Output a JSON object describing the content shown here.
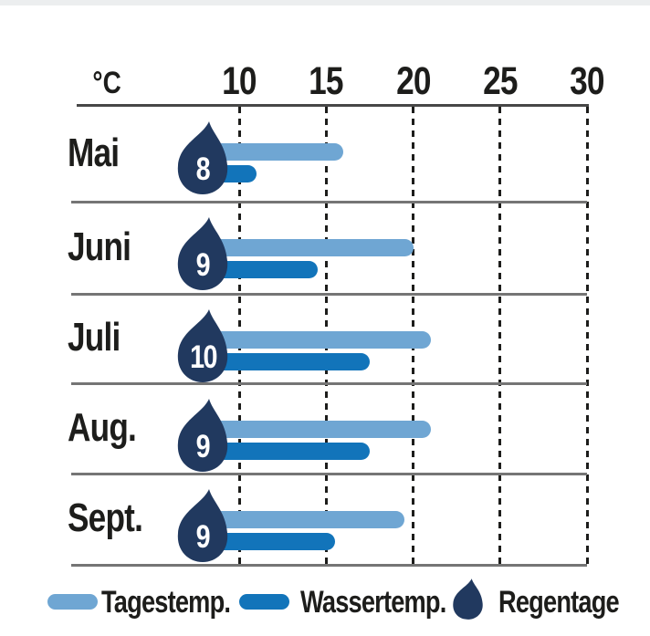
{
  "axis": {
    "unit_label": "°C",
    "ticks": [
      10,
      15,
      20,
      25,
      30
    ]
  },
  "chart_data": {
    "type": "bar",
    "orientation": "horizontal",
    "title": "",
    "xlabel": "°C",
    "xlim": [
      0,
      30
    ],
    "grid": "dashed-vertical",
    "gridlines": [
      10,
      15,
      20,
      25,
      30
    ],
    "legend_position": "bottom",
    "categories": [
      "Mai",
      "Juni",
      "Juli",
      "Aug.",
      "Sept."
    ],
    "series": [
      {
        "name": "Tagestemp.",
        "role": "day-temperature",
        "unit": "°C",
        "color": "#6FA6D3",
        "values": [
          16,
          20,
          21,
          21,
          19.5
        ]
      },
      {
        "name": "Wassertemp.",
        "role": "water-temperature",
        "unit": "°C",
        "color": "#1274BA",
        "values": [
          11,
          14.5,
          17.5,
          17.5,
          15.5
        ]
      },
      {
        "name": "Regentage",
        "role": "rain-days",
        "unit": "days",
        "color": "#21395F",
        "values": [
          8,
          9,
          10,
          9,
          9
        ]
      }
    ]
  },
  "legend": {
    "items": [
      {
        "label": "Tagestemp.",
        "swatch": "light-blue-pill"
      },
      {
        "label": "Wassertemp.",
        "swatch": "dark-blue-pill"
      },
      {
        "label": "Regentage",
        "swatch": "navy-droplet-icon"
      }
    ]
  },
  "colors": {
    "day_bar": "#6FA6D3",
    "water_bar": "#1274BA",
    "droplet": "#21395F",
    "text": "#1d1d1b",
    "separator": "#757575",
    "axis_line": "#474747",
    "background": "#ffffff"
  }
}
